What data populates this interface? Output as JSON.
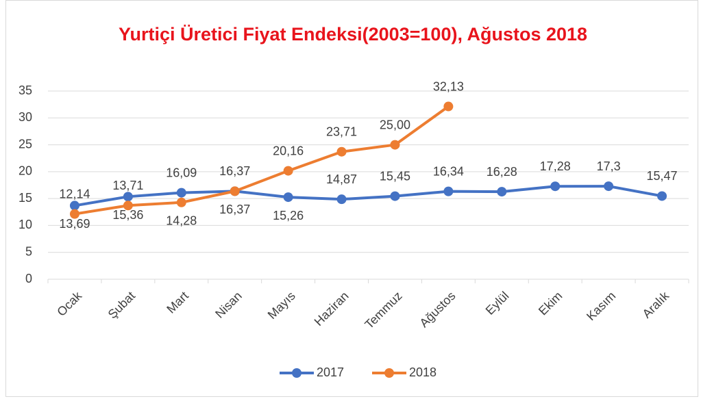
{
  "chart_data": {
    "type": "line",
    "title": "Yurtiçi Üretici Fiyat Endeksi(2003=100), Ağustos 2018",
    "categories": [
      "Ocak",
      "Şubat",
      "Mart",
      "Nisan",
      "Mayıs",
      "Haziran",
      "Temmuz",
      "Ağustos",
      "Eylül",
      "Ekim",
      "Kasım",
      "Aralık"
    ],
    "series": [
      {
        "name": "2017",
        "color": "#4472c4",
        "values": [
          13.69,
          15.36,
          16.09,
          16.37,
          15.26,
          14.87,
          15.45,
          16.34,
          16.28,
          17.28,
          17.3,
          15.47
        ],
        "value_labels": [
          "13,69",
          "15,36",
          "16,09",
          "16,37",
          "15,26",
          "14,87",
          "15,45",
          "16,34",
          "16,28",
          "17,28",
          "17,3",
          "15,47"
        ]
      },
      {
        "name": "2018",
        "color": "#ed7d31",
        "values": [
          12.14,
          13.71,
          14.28,
          16.37,
          20.16,
          23.71,
          25.0,
          32.13,
          null,
          null,
          null,
          null
        ],
        "value_labels": [
          "12,14",
          "13,71",
          "14,28",
          "16,37",
          "20,16",
          "23,71",
          "25,00",
          "32,13",
          null,
          null,
          null,
          null
        ]
      }
    ],
    "ylim": [
      0,
      35
    ],
    "yticks": [
      0,
      5,
      10,
      15,
      20,
      25,
      30,
      35
    ],
    "grid": true,
    "legend": "bottom"
  }
}
